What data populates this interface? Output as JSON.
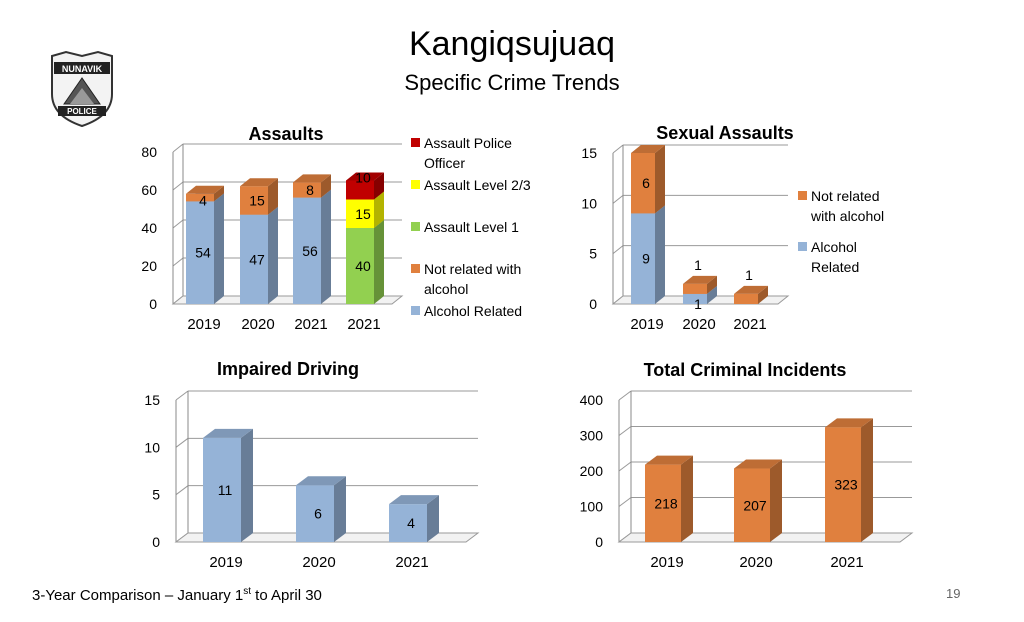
{
  "header": {
    "title": "Kangiqsujuaq",
    "subtitle": "Specific Crime Trends"
  },
  "logo": {
    "icon": "nunavik-police-badge-icon",
    "text_top": "NUNAVIK",
    "text_bottom": "POLICE"
  },
  "footer": {
    "text_pre": "3-Year Comparison – January 1",
    "text_sup": "st",
    "text_post": " to April 30",
    "page_number": "19"
  },
  "colors": {
    "alcohol_related": "#95B3D7",
    "not_related": "#E0803E",
    "level1": "#92D050",
    "level23": "#FFFF00",
    "police_officer": "#C00000",
    "blue_bar": "#95B3D7",
    "orange_bar": "#E0803E"
  },
  "chart_data": [
    {
      "id": "assaults",
      "type": "bar",
      "stacked": true,
      "title": "Assaults",
      "categories": [
        "2019",
        "2020",
        "2021",
        "2021"
      ],
      "ylim": [
        0,
        80
      ],
      "yticks": [
        "0",
        "20",
        "40",
        "60",
        "80"
      ],
      "grid": true,
      "legend_position": "right",
      "series": [
        {
          "name": "Alcohol Related",
          "values": [
            54,
            47,
            56,
            0
          ],
          "labels": [
            "54",
            "47",
            "56",
            ""
          ]
        },
        {
          "name": "Not related with alcohol",
          "values": [
            4,
            15,
            8,
            0
          ],
          "labels": [
            "4",
            "15",
            "8",
            ""
          ]
        },
        {
          "name": "Assault Level 1",
          "values": [
            0,
            0,
            0,
            40
          ],
          "labels": [
            "",
            "",
            "",
            "40"
          ]
        },
        {
          "name": "Assault Level 2/3",
          "values": [
            0,
            0,
            0,
            15
          ],
          "labels": [
            "",
            "",
            "",
            "15"
          ]
        },
        {
          "name": "Assault Police Officer",
          "values": [
            0,
            0,
            0,
            10
          ],
          "labels": [
            "",
            "",
            "",
            "10"
          ]
        }
      ],
      "legend": [
        {
          "name": "Assault Police Officer",
          "color": "#C00000"
        },
        {
          "name": "Assault Level 2/3",
          "color": "#FFFF00"
        },
        {
          "name": "Assault Level 1",
          "color": "#92D050"
        },
        {
          "name": "Not related with alcohol",
          "color": "#E0803E"
        },
        {
          "name": "Alcohol Related",
          "color": "#95B3D7"
        }
      ]
    },
    {
      "id": "sexual",
      "type": "bar",
      "stacked": true,
      "title": "Sexual Assaults",
      "categories": [
        "2019",
        "2020",
        "2021"
      ],
      "ylim": [
        0,
        15
      ],
      "yticks": [
        "0",
        "5",
        "10",
        "15"
      ],
      "grid": true,
      "legend_position": "right",
      "series": [
        {
          "name": "Alcohol Related",
          "values": [
            9,
            1,
            0
          ],
          "labels": [
            "9",
            "1",
            ""
          ]
        },
        {
          "name": "Not related with alcohol",
          "values": [
            6,
            1,
            1
          ],
          "labels": [
            "6",
            "1",
            "1"
          ]
        }
      ],
      "legend": [
        {
          "name": "Not related with alcohol",
          "color": "#E0803E"
        },
        {
          "name": "Alcohol Related",
          "color": "#95B3D7"
        }
      ]
    },
    {
      "id": "impaired",
      "type": "bar",
      "stacked": false,
      "title": "Impaired Driving",
      "categories": [
        "2019",
        "2020",
        "2021"
      ],
      "ylim": [
        0,
        15
      ],
      "yticks": [
        "0",
        "5",
        "10",
        "15"
      ],
      "grid": true,
      "series": [
        {
          "name": "",
          "values": [
            11,
            6,
            4
          ],
          "labels": [
            "11",
            "6",
            "4"
          ]
        }
      ]
    },
    {
      "id": "total",
      "type": "bar",
      "stacked": false,
      "title": "Total Criminal Incidents",
      "categories": [
        "2019",
        "2020",
        "2021"
      ],
      "ylim": [
        0,
        400
      ],
      "yticks": [
        "0",
        "100",
        "200",
        "300",
        "400"
      ],
      "grid": true,
      "series": [
        {
          "name": "",
          "values": [
            218,
            207,
            323
          ],
          "labels": [
            "218",
            "207",
            "323"
          ]
        }
      ]
    }
  ]
}
